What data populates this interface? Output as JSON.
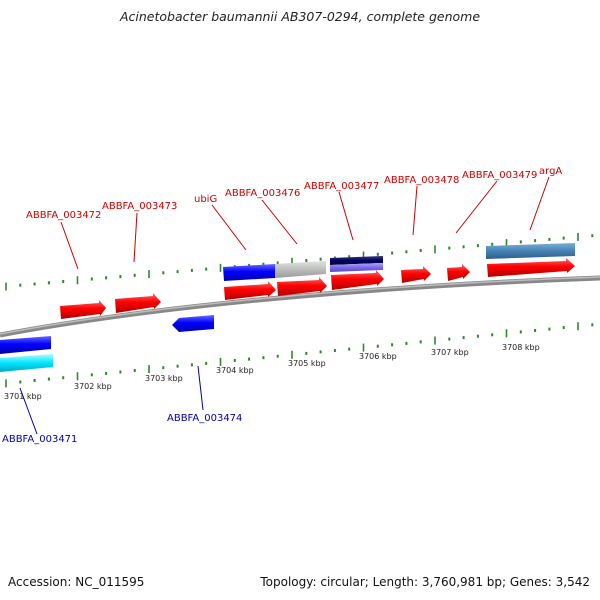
{
  "title": "Acinetobacter baumannii AB307-0294, complete genome",
  "footer": {
    "accession": "Accession: NC_011595",
    "summary": "Topology: circular; Length: 3,760,981 bp; Genes: 3,542"
  },
  "colors": {
    "forward_gene": "#ff0000",
    "reverse_gene": "#0000ff",
    "forward_label": "#cc0000",
    "reverse_label": "#0000aa",
    "tick": "#2a8a2a",
    "backbone": "#888888"
  },
  "scale_labels": [
    "3701 kbp",
    "3702 kbp",
    "3703 kbp",
    "3704 kbp",
    "3705 kbp",
    "3706 kbp",
    "3707 kbp",
    "3708 kbp"
  ],
  "forward_gene_labels": [
    "ABBFA_003472",
    "ABBFA_003473",
    "ubiG",
    "ABBFA_003476",
    "ABBFA_003477",
    "ABBFA_003478",
    "ABBFA_003479",
    "argA"
  ],
  "reverse_gene_labels": [
    "ABBFA_003471",
    "ABBFA_003474"
  ]
}
